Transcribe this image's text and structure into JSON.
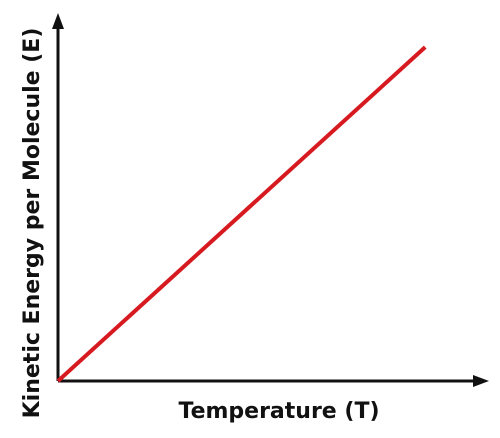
{
  "chart_data": {
    "type": "line",
    "title": "",
    "xlabel": "Temperature (T)",
    "ylabel": "Kinetic Energy per Molecule (E)",
    "xlim": [
      0,
      1
    ],
    "ylim": [
      0,
      1
    ],
    "grid": false,
    "ticks": "none",
    "series": [
      {
        "color": "#d71920",
        "points": [
          {
            "x": 0,
            "y": 0
          },
          {
            "x": 0.9,
            "y": 0.93
          }
        ]
      }
    ]
  }
}
